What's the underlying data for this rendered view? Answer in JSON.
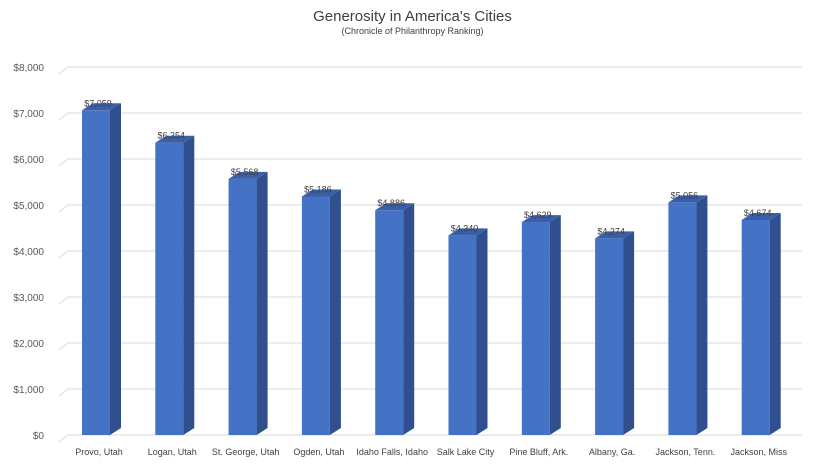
{
  "chart_data": {
    "type": "bar",
    "title": "Generosity in America's Cities",
    "subtitle": "(Chronicle of Philanthropy Ranking)",
    "xlabel": "",
    "ylabel": "",
    "categories": [
      "Provo, Utah",
      "Logan, Utah",
      "St. George, Utah",
      "Ogden, Utah",
      "Idaho Falls, Idaho",
      "Salk Lake City",
      "Pine Bluff, Ark.",
      "Albany, Ga.",
      "Jackson, Tenn.",
      "Jackson, Miss"
    ],
    "values": [
      7059,
      6354,
      5568,
      5186,
      4886,
      4340,
      4629,
      4274,
      5056,
      4674
    ],
    "data_labels": [
      "$7,059",
      "$6,354",
      "$5,568",
      "$5,186",
      "$4,886",
      "$4,340",
      "$4,629",
      "$4,274",
      "$5,056",
      "$4,674"
    ],
    "ylim": [
      0,
      8000
    ],
    "yticks": [
      0,
      1000,
      2000,
      3000,
      4000,
      5000,
      6000,
      7000,
      8000
    ],
    "ytick_labels": [
      "$0",
      "$1,000",
      "$2,000",
      "$3,000",
      "$4,000",
      "$5,000",
      "$6,000",
      "$7,000",
      "$8,000"
    ],
    "grid": true,
    "style": "3d-column",
    "colors": {
      "bar_front": "#4472C4",
      "bar_side": "#2F4F8F",
      "bar_top": "#3A5FA8",
      "grid": "#D9D9D9"
    }
  }
}
